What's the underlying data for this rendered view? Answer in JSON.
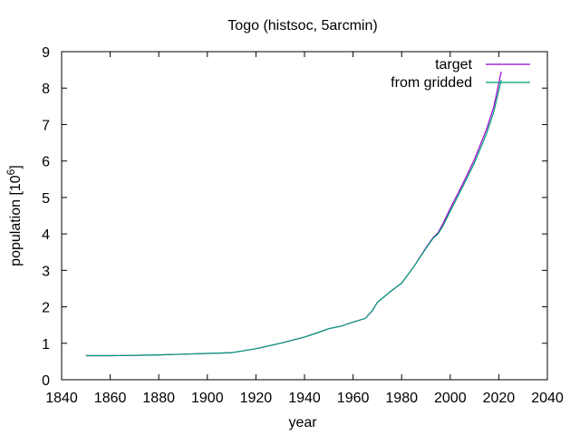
{
  "chart_data": {
    "type": "line",
    "title": "Togo (histsoc, 5arcmin)",
    "xlabel": "year",
    "ylabel_main": "population [10",
    "ylabel_sup": "6",
    "ylabel_close": "]",
    "xlim": [
      1840,
      2040
    ],
    "ylim": [
      0,
      9
    ],
    "xticks": [
      1840,
      1860,
      1880,
      1900,
      1920,
      1940,
      1960,
      1980,
      2000,
      2020,
      2040
    ],
    "yticks": [
      0,
      1,
      2,
      3,
      4,
      5,
      6,
      7,
      8,
      9
    ],
    "grid": false,
    "legend_position": "top-right",
    "series": [
      {
        "name": "target",
        "color": "#9400d3",
        "points": [
          [
            1850,
            0.66
          ],
          [
            1860,
            0.66
          ],
          [
            1870,
            0.67
          ],
          [
            1880,
            0.68
          ],
          [
            1890,
            0.7
          ],
          [
            1900,
            0.72
          ],
          [
            1910,
            0.74
          ],
          [
            1920,
            0.85
          ],
          [
            1930,
            1.0
          ],
          [
            1940,
            1.17
          ],
          [
            1945,
            1.28
          ],
          [
            1950,
            1.4
          ],
          [
            1955,
            1.47
          ],
          [
            1960,
            1.58
          ],
          [
            1965,
            1.68
          ],
          [
            1968,
            1.9
          ],
          [
            1970,
            2.12
          ],
          [
            1975,
            2.4
          ],
          [
            1980,
            2.65
          ],
          [
            1985,
            3.1
          ],
          [
            1990,
            3.62
          ],
          [
            1993,
            3.9
          ],
          [
            1995,
            4.03
          ],
          [
            1997,
            4.28
          ],
          [
            2000,
            4.7
          ],
          [
            2005,
            5.35
          ],
          [
            2010,
            6.05
          ],
          [
            2015,
            6.88
          ],
          [
            2018,
            7.5
          ],
          [
            2021,
            8.45
          ]
        ]
      },
      {
        "name": "from gridded",
        "color": "#009e73",
        "points": [
          [
            1850,
            0.66
          ],
          [
            1860,
            0.66
          ],
          [
            1870,
            0.67
          ],
          [
            1880,
            0.68
          ],
          [
            1890,
            0.7
          ],
          [
            1900,
            0.72
          ],
          [
            1910,
            0.74
          ],
          [
            1920,
            0.85
          ],
          [
            1930,
            1.0
          ],
          [
            1940,
            1.17
          ],
          [
            1945,
            1.28
          ],
          [
            1950,
            1.4
          ],
          [
            1955,
            1.47
          ],
          [
            1960,
            1.58
          ],
          [
            1965,
            1.68
          ],
          [
            1968,
            1.9
          ],
          [
            1970,
            2.12
          ],
          [
            1975,
            2.4
          ],
          [
            1980,
            2.65
          ],
          [
            1985,
            3.1
          ],
          [
            1990,
            3.6
          ],
          [
            1993,
            3.88
          ],
          [
            1995,
            4.0
          ],
          [
            1997,
            4.22
          ],
          [
            2000,
            4.62
          ],
          [
            2005,
            5.27
          ],
          [
            2010,
            5.95
          ],
          [
            2015,
            6.76
          ],
          [
            2018,
            7.36
          ],
          [
            2021,
            8.22
          ]
        ]
      }
    ]
  }
}
